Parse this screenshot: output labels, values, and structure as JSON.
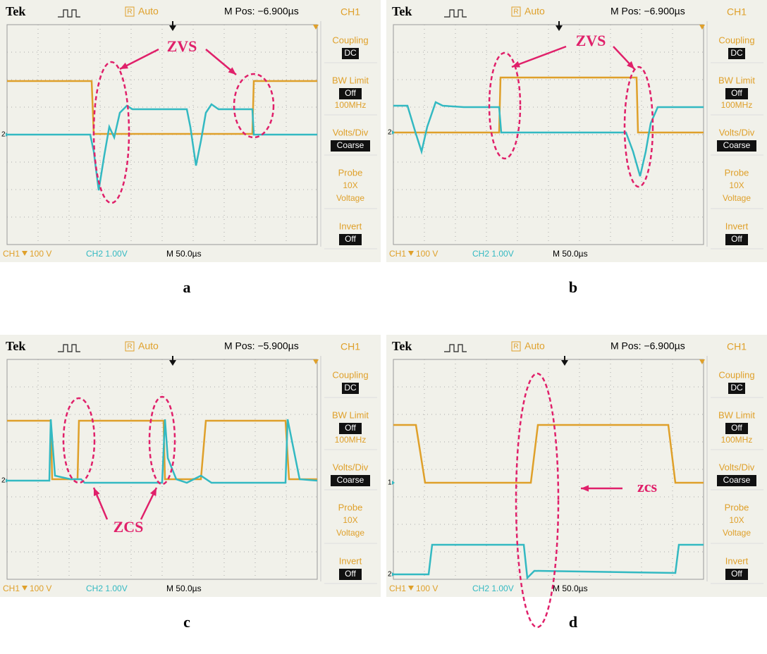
{
  "panels": [
    {
      "header": {
        "brand": "Tek",
        "trigger_icon": "R",
        "trigger_mode": "Auto",
        "position": "M Pos: −6.900µs",
        "channel": "CH1"
      },
      "menu": [
        {
          "title": "Coupling",
          "value": "DC"
        },
        {
          "title": "BW Limit",
          "value": "Off",
          "note": "100MHz"
        },
        {
          "title": "Volts/Div",
          "value": "Coarse"
        },
        {
          "title": "Probe",
          "lines": [
            "10X",
            "Voltage"
          ]
        },
        {
          "title": "Invert",
          "value": "Off"
        }
      ],
      "footer": {
        "ch1": "CH1",
        "ch1_scale": "100 V",
        "ch2": "CH2  1.00V",
        "timebase": "M 50.0µs"
      },
      "markers": [
        "2"
      ],
      "annotation": "ZVS",
      "caption": "a"
    },
    {
      "header": {
        "brand": "Tek",
        "trigger_icon": "R",
        "trigger_mode": "Auto",
        "position": "M Pos: −6.900µs",
        "channel": "CH1"
      },
      "menu": [
        {
          "title": "Coupling",
          "value": "DC"
        },
        {
          "title": "BW Limit",
          "value": "Off",
          "note": "100MHz"
        },
        {
          "title": "Volts/Div",
          "value": "Coarse"
        },
        {
          "title": "Probe",
          "lines": [
            "10X",
            "Voltage"
          ]
        },
        {
          "title": "Invert",
          "value": "Off"
        }
      ],
      "footer": {
        "ch1": "CH1",
        "ch1_scale": "100 V",
        "ch2": "CH2  1.00V",
        "timebase": "M 50.0µs"
      },
      "markers": [
        "2"
      ],
      "annotation": "ZVS",
      "caption": "b"
    },
    {
      "header": {
        "brand": "Tek",
        "trigger_icon": "R",
        "trigger_mode": "Auto",
        "position": "M Pos: −5.900µs",
        "channel": "CH1"
      },
      "menu": [
        {
          "title": "Coupling",
          "value": "DC"
        },
        {
          "title": "BW Limit",
          "value": "Off",
          "note": "100MHz"
        },
        {
          "title": "Volts/Div",
          "value": "Coarse"
        },
        {
          "title": "Probe",
          "lines": [
            "10X",
            "Voltage"
          ]
        },
        {
          "title": "Invert",
          "value": "Off"
        }
      ],
      "footer": {
        "ch1": "CH1",
        "ch1_scale": "100 V",
        "ch2": "CH2  1.00V",
        "timebase": "M 50.0µs"
      },
      "markers": [
        "2"
      ],
      "annotation": "ZCS",
      "caption": "c"
    },
    {
      "header": {
        "brand": "Tek",
        "trigger_icon": "R",
        "trigger_mode": "Auto",
        "position": "M Pos: −6.900µs",
        "channel": "CH1"
      },
      "menu": [
        {
          "title": "Coupling",
          "value": "DC"
        },
        {
          "title": "BW Limit",
          "value": "Off",
          "note": "100MHz"
        },
        {
          "title": "Volts/Div",
          "value": "Coarse"
        },
        {
          "title": "Probe",
          "lines": [
            "10X",
            "Voltage"
          ]
        },
        {
          "title": "Invert",
          "value": "Off"
        }
      ],
      "footer": {
        "ch1": "CH1",
        "ch1_scale": "100 V",
        "ch2": "CH2  1.00V",
        "timebase": "M 50.0µs"
      },
      "markers": [
        "1",
        "2"
      ],
      "annotation": "zcs",
      "caption": "d"
    }
  ]
}
